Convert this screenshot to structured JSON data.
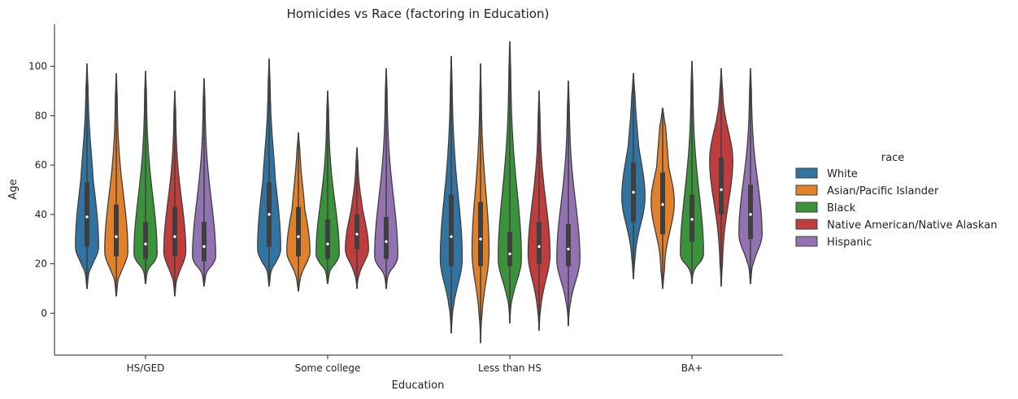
{
  "chart_data": {
    "type": "violin",
    "title": "Homicides vs Race (factoring in Education)",
    "xlabel": "Education",
    "ylabel": "Age",
    "ylim": [
      -17,
      117
    ],
    "yticks": [
      0,
      20,
      40,
      60,
      80,
      100
    ],
    "categories": [
      "HS/GED",
      "Some college",
      "Less than HS",
      "BA+"
    ],
    "grid": false,
    "legend": {
      "title": "race",
      "placement": "right"
    },
    "series": [
      {
        "name": "White",
        "color": "#3274a1",
        "stats": [
          {
            "min": 10,
            "q1": 27,
            "median": 39,
            "q3": 53,
            "max": 101,
            "mode": 27,
            "spread": 0.95
          },
          {
            "min": 11,
            "q1": 27,
            "median": 40,
            "q3": 53,
            "max": 103,
            "mode": 26,
            "spread": 0.95
          },
          {
            "min": -8,
            "q1": 19,
            "median": 31,
            "q3": 48,
            "max": 104,
            "mode": 22,
            "spread": 0.9
          },
          {
            "min": 14,
            "q1": 37,
            "median": 49,
            "q3": 61,
            "max": 97,
            "mode": 47,
            "spread": 0.95
          }
        ]
      },
      {
        "name": "Asian/Pacific Islander",
        "color": "#e1812c",
        "stats": [
          {
            "min": 7,
            "q1": 23,
            "median": 31,
            "q3": 44,
            "max": 97,
            "mode": 25,
            "spread": 0.95
          },
          {
            "min": 9,
            "q1": 23,
            "median": 31,
            "q3": 43,
            "max": 73,
            "mode": 25,
            "spread": 0.95
          },
          {
            "min": -12,
            "q1": 19,
            "median": 30,
            "q3": 45,
            "max": 101,
            "mode": 25,
            "spread": 0.7
          },
          {
            "min": 10,
            "q1": 32,
            "median": 44,
            "q3": 57,
            "max": 83,
            "mode": 45,
            "spread": 0.95
          }
        ]
      },
      {
        "name": "Black",
        "color": "#3a923a",
        "stats": [
          {
            "min": 12,
            "q1": 22,
            "median": 28,
            "q3": 37,
            "max": 98,
            "mode": 24,
            "spread": 0.95
          },
          {
            "min": 12,
            "q1": 22,
            "median": 28,
            "q3": 38,
            "max": 90,
            "mode": 24,
            "spread": 0.95
          },
          {
            "min": -4,
            "q1": 19,
            "median": 24,
            "q3": 33,
            "max": 110,
            "mode": 22,
            "spread": 0.95
          },
          {
            "min": 12,
            "q1": 29,
            "median": 38,
            "q3": 48,
            "max": 102,
            "mode": 24,
            "spread": 0.95
          }
        ]
      },
      {
        "name": "Native American/Native Alaskan",
        "color": "#c03d3e",
        "stats": [
          {
            "min": 7,
            "q1": 23,
            "median": 31,
            "q3": 43,
            "max": 90,
            "mode": 25,
            "spread": 0.9
          },
          {
            "min": 10,
            "q1": 26,
            "median": 32,
            "q3": 40,
            "max": 67,
            "mode": 26,
            "spread": 0.95
          },
          {
            "min": -7,
            "q1": 20,
            "median": 27,
            "q3": 37,
            "max": 90,
            "mode": 24,
            "spread": 0.9
          },
          {
            "min": 11,
            "q1": 40,
            "median": 50,
            "q3": 63,
            "max": 99,
            "mode": 62,
            "spread": 0.95
          }
        ]
      },
      {
        "name": "Hispanic",
        "color": "#9372b2",
        "stats": [
          {
            "min": 11,
            "q1": 21,
            "median": 27,
            "q3": 37,
            "max": 95,
            "mode": 23,
            "spread": 0.95
          },
          {
            "min": 10,
            "q1": 22,
            "median": 29,
            "q3": 39,
            "max": 99,
            "mode": 23,
            "spread": 0.95
          },
          {
            "min": -5,
            "q1": 19,
            "median": 26,
            "q3": 36,
            "max": 94,
            "mode": 22,
            "spread": 0.95
          },
          {
            "min": 12,
            "q1": 30,
            "median": 40,
            "q3": 52,
            "max": 99,
            "mode": 32,
            "spread": 0.95
          }
        ]
      }
    ]
  }
}
